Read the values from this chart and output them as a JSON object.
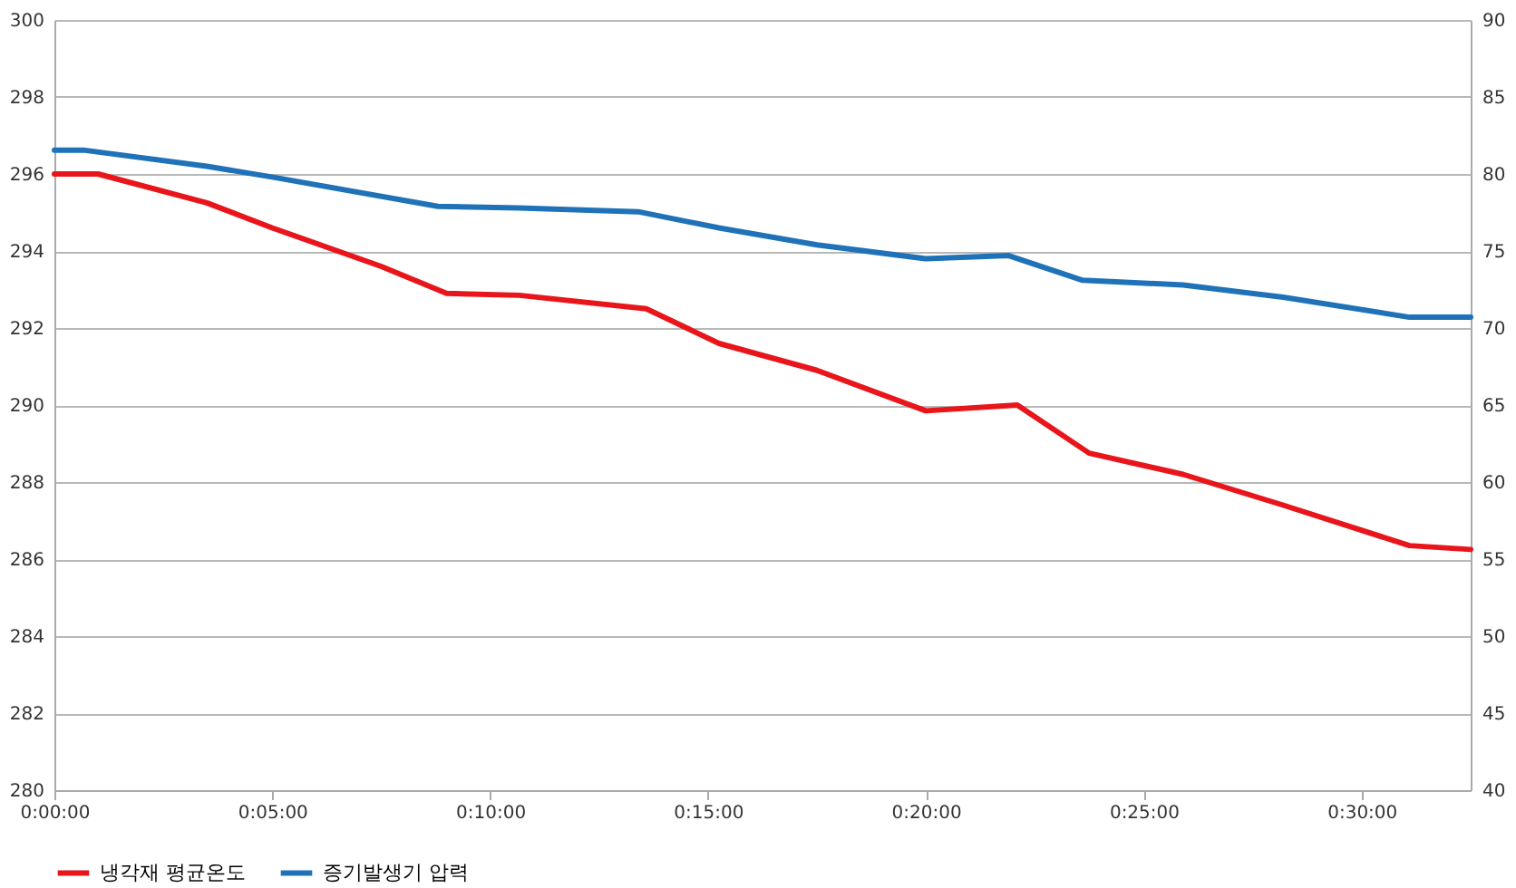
{
  "chart_data": {
    "type": "line",
    "xlim": [
      0,
      0.5417
    ],
    "xticks": [
      {
        "value": 0,
        "label": "0:00:00"
      },
      {
        "value": 0.083333,
        "label": "0:05:00"
      },
      {
        "value": 0.166667,
        "label": "0:10:00"
      },
      {
        "value": 0.25,
        "label": "0:15:00"
      },
      {
        "value": 0.333333,
        "label": "0:20:00"
      },
      {
        "value": 0.416667,
        "label": "0:25:00"
      },
      {
        "value": 0.5,
        "label": "0:30:00"
      }
    ],
    "ylim": [
      280,
      300
    ],
    "yticks": [
      280,
      282,
      284,
      286,
      288,
      290,
      292,
      294,
      296,
      298,
      300
    ],
    "y2lim": [
      40,
      90
    ],
    "y2ticks": [
      40,
      45,
      50,
      55,
      60,
      65,
      70,
      75,
      80,
      85,
      90
    ],
    "grid": "y",
    "legend": "bottom",
    "marker": "none",
    "line_style": "solid",
    "series": [
      {
        "name": "냉각재 평균온도",
        "color": "#e8151b",
        "x": [
          0,
          0.0167,
          0.0583,
          0.0833,
          0.125,
          0.15,
          0.1778,
          0.2264,
          0.2542,
          0.2917,
          0.3333,
          0.3683,
          0.3958,
          0.4317,
          0.47,
          0.5183,
          0.5417
        ],
        "values": [
          296,
          296,
          295.25,
          294.6,
          293.6,
          292.9,
          292.85,
          292.5,
          291.6,
          290.9,
          289.85,
          290,
          288.75,
          288.2,
          287.4,
          286.35,
          286.25
        ]
      },
      {
        "name": "증기발생기 압력",
        "color": "#1f72b8",
        "axis": "y2",
        "x": [
          0,
          0.0111,
          0.0583,
          0.0833,
          0.1467,
          0.1778,
          0.2233,
          0.2542,
          0.2917,
          0.3333,
          0.365,
          0.3933,
          0.4317,
          0.47,
          0.5183,
          0.5417
        ],
        "values": [
          81.55,
          81.55,
          80.5,
          79.8,
          77.9,
          77.8,
          77.55,
          76.5,
          75.4,
          74.5,
          74.7,
          73.1,
          72.8,
          72,
          70.7,
          70.7
        ]
      }
    ]
  }
}
